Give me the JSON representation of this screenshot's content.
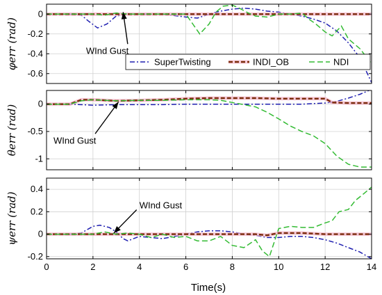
{
  "chart_data": [
    {
      "type": "line",
      "ylabel": "φerr (rad)",
      "ylim": [
        -0.7,
        0.1
      ],
      "yticks": [
        0,
        -0.2,
        -0.4,
        -0.6
      ],
      "xlim": [
        0,
        14
      ],
      "annotation": {
        "text": "WInd Gust",
        "at": [
          3.3,
          0.02
        ],
        "text_at": [
          1.7,
          -0.4
        ]
      },
      "legend": {
        "position": "upper-right",
        "entries": [
          "SuperTwisting",
          "INDI_OB",
          "NDI"
        ]
      },
      "series": [
        {
          "name": "SuperTwisting",
          "color": "#1f1fb0",
          "dash": "dashdot",
          "x": [
            0,
            1,
            1.5,
            1.8,
            2.2,
            2.6,
            3,
            3.5,
            4,
            5,
            6,
            6.5,
            7,
            7.5,
            8,
            8.5,
            9,
            9.5,
            10,
            10.5,
            11,
            11.5,
            12,
            12.5,
            13,
            13.5,
            14
          ],
          "y": [
            0,
            0,
            -0.01,
            -0.07,
            -0.14,
            -0.1,
            -0.02,
            0,
            0,
            0,
            -0.03,
            -0.04,
            0,
            0.03,
            0.05,
            0.06,
            0.05,
            0.03,
            0.02,
            0,
            -0.02,
            -0.05,
            -0.09,
            -0.17,
            -0.29,
            -0.44,
            -0.69
          ]
        },
        {
          "name": "INDI_OB",
          "color": "#7a2a0a",
          "dash": "dashed-thick",
          "glow": "#f3b3c7",
          "x": [
            0,
            1,
            2,
            3,
            4,
            5,
            6,
            7,
            8,
            9,
            10,
            11,
            12,
            13,
            14
          ],
          "y": [
            0,
            0,
            0,
            0,
            0,
            0,
            0,
            0,
            0,
            0,
            0,
            0,
            0,
            0,
            0
          ]
        },
        {
          "name": "NDI",
          "color": "#33bb33",
          "dash": "dashed",
          "x": [
            0,
            1,
            1.5,
            2,
            2.5,
            3,
            3.5,
            4,
            5,
            6,
            6.3,
            6.6,
            7,
            7.3,
            7.6,
            8,
            8.3,
            8.7,
            9,
            9.5,
            10,
            10.5,
            11,
            11.3,
            11.6,
            12,
            12.3,
            12.7,
            13,
            13.5,
            14
          ],
          "y": [
            0,
            0,
            0,
            0,
            -0.01,
            0.01,
            0,
            0,
            0,
            0,
            -0.1,
            -0.2,
            -0.1,
            0.02,
            0.08,
            0.09,
            0.06,
            0.01,
            -0.02,
            -0.03,
            0,
            0,
            0.01,
            -0.05,
            -0.1,
            -0.18,
            -0.22,
            -0.12,
            -0.25,
            -0.35,
            -0.5
          ]
        }
      ]
    },
    {
      "type": "line",
      "ylabel": "θerr (rad)",
      "ylim": [
        -1.2,
        0.25
      ],
      "yticks": [
        0,
        -0.5,
        -1
      ],
      "xlim": [
        0,
        14
      ],
      "annotation": {
        "text": "WInd Gust",
        "at": [
          3.1,
          0.04
        ],
        "text_at": [
          0.3,
          -0.72
        ]
      },
      "series": [
        {
          "name": "SuperTwisting",
          "color": "#1f1fb0",
          "dash": "dashdot",
          "x": [
            0,
            1,
            2,
            3,
            4,
            5,
            6,
            7,
            8,
            9,
            10,
            11,
            12,
            12.5,
            13,
            13.5,
            14
          ],
          "y": [
            0,
            0,
            -0.02,
            -0.01,
            -0.01,
            -0.01,
            0,
            0,
            0,
            0,
            0,
            0,
            0.02,
            0.05,
            0.11,
            0.18,
            0.27
          ]
        },
        {
          "name": "INDI_OB",
          "color": "#7a2a0a",
          "dash": "dashed-thick",
          "glow": "#f3b3c7",
          "x": [
            0,
            0.5,
            1,
            1.5,
            2,
            3,
            4,
            5,
            6,
            7,
            8,
            9,
            10,
            11,
            12,
            12.3,
            13,
            14
          ],
          "y": [
            0,
            0,
            0,
            0.08,
            0.08,
            0.06,
            0.07,
            0.08,
            0.1,
            0.11,
            0.11,
            0.11,
            0.1,
            0.1,
            0.1,
            0.03,
            0.02,
            0.02
          ]
        },
        {
          "name": "NDI",
          "color": "#33bb33",
          "dash": "dashed",
          "x": [
            0,
            1,
            1.5,
            2,
            3,
            4,
            5,
            6,
            7,
            7.5,
            8,
            9,
            9.5,
            10,
            10.5,
            11,
            11.5,
            12,
            12.5,
            13,
            13.5,
            14
          ],
          "y": [
            0,
            0,
            0.06,
            0.08,
            0.06,
            0.07,
            0.07,
            0.08,
            0.08,
            0.07,
            0.03,
            -0.05,
            -0.15,
            -0.27,
            -0.4,
            -0.5,
            -0.58,
            -0.72,
            -0.95,
            -1.1,
            -1.15,
            -1.15
          ]
        }
      ]
    },
    {
      "type": "line",
      "ylabel": "ψerr (rad)",
      "ylim": [
        -0.22,
        0.5
      ],
      "yticks": [
        0.4,
        0.2,
        0,
        -0.2
      ],
      "xlim": [
        0,
        14
      ],
      "xticks": [
        0,
        2,
        4,
        6,
        8,
        10,
        12,
        14
      ],
      "xlabel": "Time(s)",
      "annotation": {
        "text": "WInd Gust",
        "at": [
          2.9,
          0.01
        ],
        "text_at": [
          4.0,
          0.23
        ]
      },
      "series": [
        {
          "name": "SuperTwisting",
          "color": "#1f1fb0",
          "dash": "dashdot",
          "x": [
            0,
            1,
            1.5,
            2,
            2.3,
            2.7,
            3,
            3.3,
            3.5,
            4,
            4.5,
            5,
            5.5,
            6,
            6.5,
            7,
            7.5,
            8,
            8.5,
            9,
            9.5,
            10,
            10.5,
            11,
            11.5,
            12,
            12.5,
            13,
            13.5,
            14
          ],
          "y": [
            0,
            0,
            0.01,
            0.07,
            0.08,
            0.06,
            0.02,
            -0.04,
            -0.06,
            -0.02,
            -0.03,
            -0.04,
            -0.02,
            0,
            0.02,
            0.03,
            0.03,
            0.02,
            0,
            -0.01,
            -0.03,
            -0.03,
            -0.02,
            -0.02,
            -0.03,
            -0.05,
            -0.08,
            -0.12,
            -0.16,
            -0.22
          ]
        },
        {
          "name": "INDI_OB",
          "color": "#7a2a0a",
          "dash": "dashed-thick",
          "glow": "#f3b3c7",
          "x": [
            0,
            1,
            2,
            3,
            4,
            5,
            6,
            7,
            8,
            9,
            9.5,
            10,
            11,
            12,
            13,
            14
          ],
          "y": [
            0,
            0,
            0,
            0,
            0,
            0,
            0,
            0,
            0,
            0,
            -0.01,
            0.01,
            0.01,
            0,
            0,
            0
          ]
        },
        {
          "name": "NDI",
          "color": "#33bb33",
          "dash": "dashed",
          "x": [
            0,
            1,
            2,
            2.5,
            3,
            3.5,
            4,
            4.5,
            5,
            5.5,
            6,
            6.5,
            7,
            7.5,
            8,
            8.5,
            9,
            9.3,
            9.6,
            10,
            10.5,
            11,
            11.5,
            12,
            12.3,
            12.6,
            13,
            13.3,
            13.6,
            14
          ],
          "y": [
            0,
            0,
            0,
            0.02,
            0,
            0.01,
            0,
            -0.03,
            0,
            -0.03,
            -0.02,
            -0.06,
            -0.06,
            -0.02,
            -0.1,
            -0.12,
            -0.05,
            -0.15,
            -0.2,
            0.05,
            0.07,
            0.06,
            0.06,
            0.1,
            0.12,
            0.2,
            0.22,
            0.3,
            0.35,
            0.42
          ]
        }
      ]
    }
  ]
}
